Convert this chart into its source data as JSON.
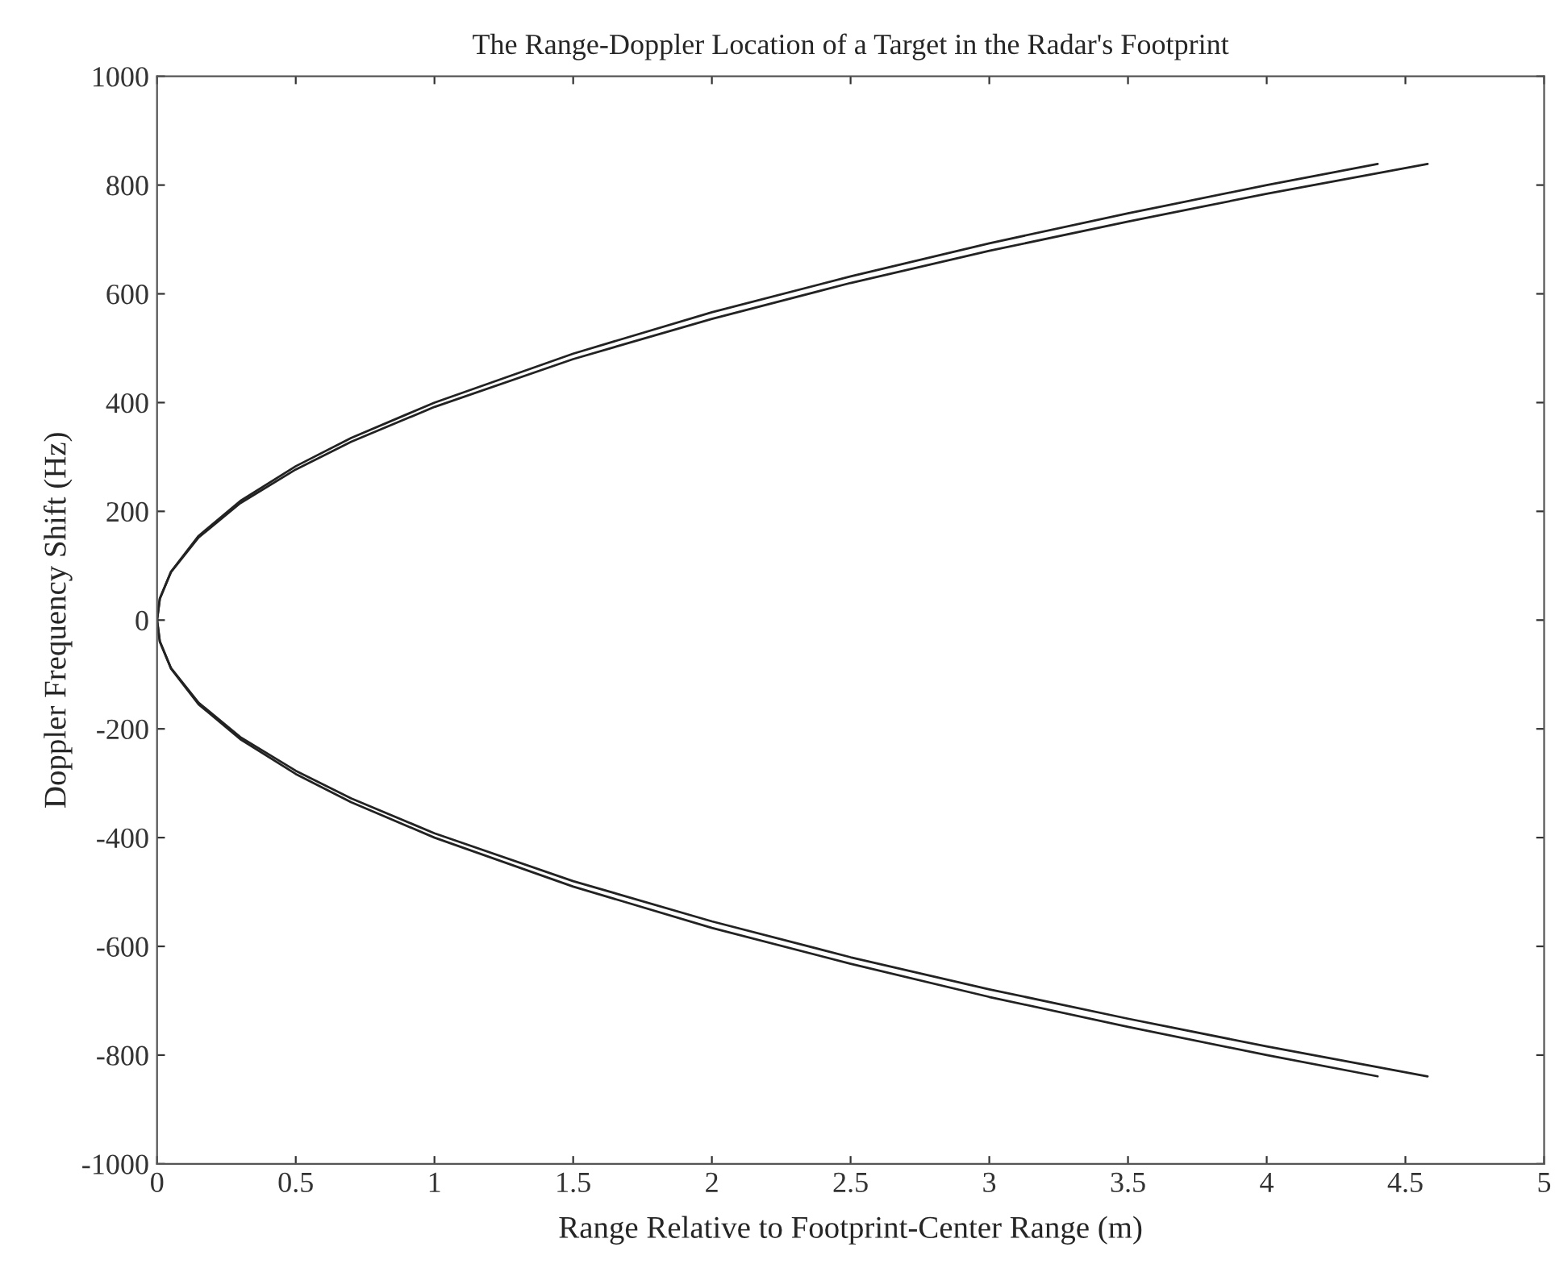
{
  "chart_data": {
    "type": "line",
    "title": "The Range-Doppler Location of a Target in the Radar's Footprint",
    "xlabel": "Range Relative to Footprint-Center Range (m)",
    "ylabel": "Doppler Frequency Shift (Hz)",
    "series": [
      {
        "color": "#222222",
        "x": [
          4.58,
          4,
          3.5,
          3,
          2.5,
          2,
          1.5,
          1,
          0.7,
          0.5,
          0.3,
          0.15,
          0.05,
          0.01,
          0,
          0.01,
          0.05,
          0.15,
          0.3,
          0.5,
          0.7,
          1,
          1.5,
          2,
          2.5,
          3,
          3.5,
          4,
          4.58
        ],
        "values": [
          -839,
          -784,
          -733,
          -679,
          -620,
          -554,
          -480,
          -392,
          -328,
          -277,
          -215,
          -152,
          -88,
          -39,
          0,
          39,
          88,
          152,
          215,
          277,
          328,
          392,
          480,
          554,
          620,
          679,
          733,
          784,
          839
        ]
      },
      {
        "color": "#222222",
        "x": [
          4.4,
          4,
          3.5,
          3,
          2.5,
          2,
          1.5,
          1,
          0.7,
          0.5,
          0.3,
          0.15,
          0.05,
          0.01,
          0,
          0.01,
          0.05,
          0.15,
          0.3,
          0.5,
          0.7,
          1,
          1.5,
          2,
          2.5,
          3,
          3.5,
          4,
          4.4
        ],
        "values": [
          -839,
          -800,
          -748,
          -693,
          -632,
          -566,
          -490,
          -400,
          -335,
          -283,
          -219,
          -155,
          -89,
          -40,
          0,
          40,
          89,
          155,
          219,
          283,
          335,
          400,
          490,
          566,
          632,
          693,
          748,
          800,
          839
        ]
      }
    ],
    "xlim": [
      0,
      5
    ],
    "xticks": [
      0,
      0.5,
      1,
      1.5,
      2,
      2.5,
      3,
      3.5,
      4,
      4.5,
      5
    ],
    "ylim": [
      -1000,
      1000
    ],
    "yticks": [
      -1000,
      -800,
      -600,
      -400,
      -200,
      0,
      200,
      400,
      600,
      800,
      1000
    ],
    "grid": false,
    "legend": false
  }
}
